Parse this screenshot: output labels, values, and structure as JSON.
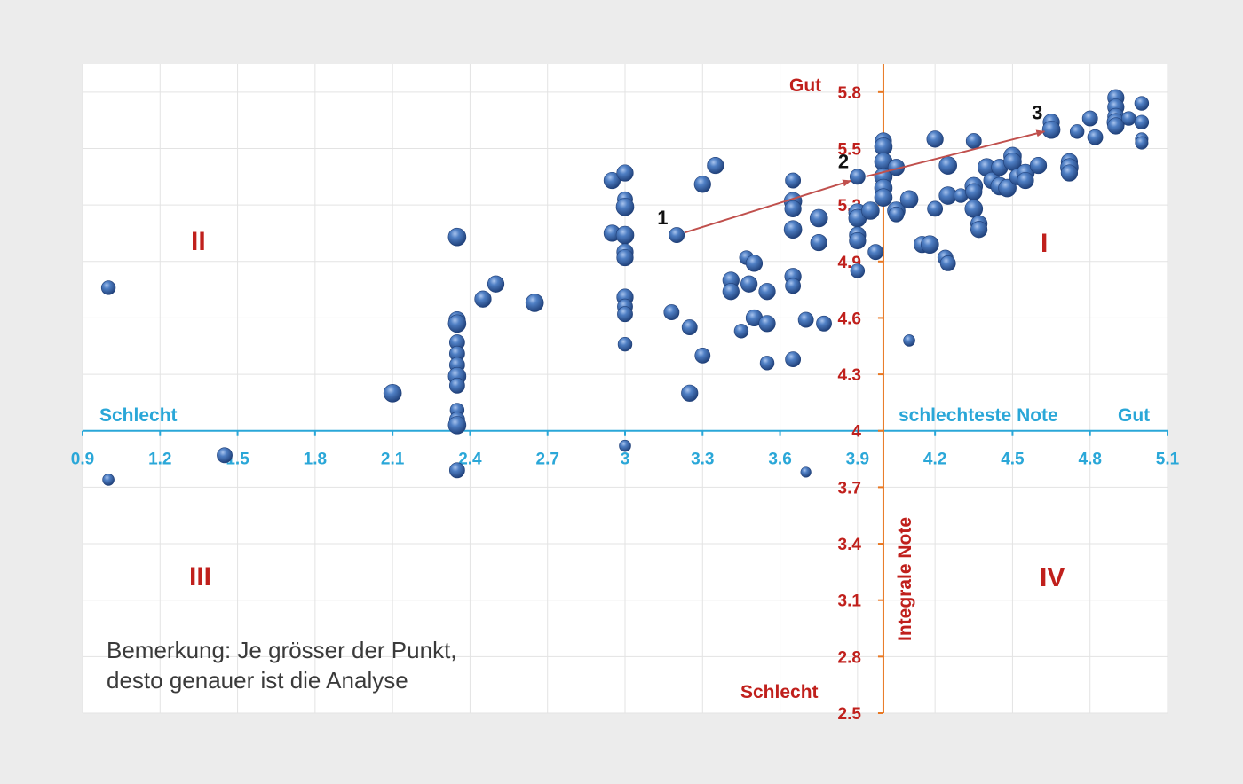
{
  "chart_data": {
    "type": "scatter",
    "x_axis": {
      "ticks": [
        "0.9",
        "1.2",
        "1.5",
        "1.8",
        "2.1",
        "2.4",
        "2.7",
        "3",
        "3.3",
        "3.6",
        "3.9",
        "4.2",
        "4.5",
        "4.8",
        "5.1"
      ],
      "range": [
        0.9,
        5.1
      ],
      "crosses_y_at": 4.0,
      "label_left": "Schlecht",
      "label_mid": "schlechteste Note",
      "label_right": "Gut",
      "color": "#2aa7d8"
    },
    "y_axis": {
      "ticks": [
        "2.5",
        "2.8",
        "3.1",
        "3.4",
        "3.7",
        "4",
        "4.3",
        "4.6",
        "4.9",
        "5.2",
        "5.5",
        "5.8"
      ],
      "range": [
        2.5,
        5.95
      ],
      "crosses_x_at": 4.0,
      "title": "Integrale Note",
      "label_top": "Gut",
      "label_bottom": "Schlecht",
      "tick_color": "#c0201c",
      "line_color": "#e87722"
    },
    "grid": true,
    "quadrant_labels": {
      "q1": "I",
      "q2": "II",
      "q3": "III",
      "q4": "IV"
    },
    "trend_points": [
      {
        "label": "1",
        "x": 3.2,
        "y": 5.04
      },
      {
        "label": "2",
        "x": 3.9,
        "y": 5.34
      },
      {
        "label": "3",
        "x": 4.65,
        "y": 5.6
      }
    ],
    "arrow_color": "#c0504d",
    "bubble_color": "#3f6fb5",
    "points": [
      {
        "x": 1.0,
        "y": 4.76,
        "s": 0.7
      },
      {
        "x": 1.0,
        "y": 3.74,
        "s": 0.5
      },
      {
        "x": 1.45,
        "y": 3.87,
        "s": 0.8
      },
      {
        "x": 2.1,
        "y": 4.2,
        "s": 1.0
      },
      {
        "x": 2.35,
        "y": 5.03,
        "s": 1.0
      },
      {
        "x": 2.35,
        "y": 4.59,
        "s": 0.9
      },
      {
        "x": 2.35,
        "y": 4.57,
        "s": 1.0
      },
      {
        "x": 2.35,
        "y": 4.47,
        "s": 0.8
      },
      {
        "x": 2.35,
        "y": 4.41,
        "s": 0.8
      },
      {
        "x": 2.35,
        "y": 4.35,
        "s": 0.8
      },
      {
        "x": 2.35,
        "y": 4.29,
        "s": 1.0
      },
      {
        "x": 2.35,
        "y": 4.24,
        "s": 0.8
      },
      {
        "x": 2.35,
        "y": 4.11,
        "s": 0.7
      },
      {
        "x": 2.35,
        "y": 4.06,
        "s": 0.8
      },
      {
        "x": 2.35,
        "y": 4.03,
        "s": 1.0
      },
      {
        "x": 2.35,
        "y": 3.79,
        "s": 0.8
      },
      {
        "x": 2.45,
        "y": 4.7,
        "s": 0.9
      },
      {
        "x": 2.5,
        "y": 4.78,
        "s": 0.9
      },
      {
        "x": 2.65,
        "y": 4.68,
        "s": 1.0
      },
      {
        "x": 2.95,
        "y": 5.33,
        "s": 0.9
      },
      {
        "x": 2.95,
        "y": 5.05,
        "s": 0.9
      },
      {
        "x": 3.0,
        "y": 5.37,
        "s": 0.9
      },
      {
        "x": 3.0,
        "y": 5.23,
        "s": 0.8
      },
      {
        "x": 3.0,
        "y": 5.19,
        "s": 1.0
      },
      {
        "x": 3.0,
        "y": 5.04,
        "s": 1.0
      },
      {
        "x": 3.0,
        "y": 4.95,
        "s": 0.9
      },
      {
        "x": 3.0,
        "y": 4.92,
        "s": 0.9
      },
      {
        "x": 3.0,
        "y": 4.71,
        "s": 0.9
      },
      {
        "x": 3.0,
        "y": 4.66,
        "s": 0.8
      },
      {
        "x": 3.0,
        "y": 4.62,
        "s": 0.8
      },
      {
        "x": 3.0,
        "y": 4.46,
        "s": 0.7
      },
      {
        "x": 3.0,
        "y": 3.92,
        "s": 0.5
      },
      {
        "x": 3.18,
        "y": 4.63,
        "s": 0.8
      },
      {
        "x": 3.2,
        "y": 5.04,
        "s": 0.8
      },
      {
        "x": 3.25,
        "y": 4.55,
        "s": 0.8
      },
      {
        "x": 3.25,
        "y": 4.2,
        "s": 0.9
      },
      {
        "x": 3.3,
        "y": 5.31,
        "s": 0.9
      },
      {
        "x": 3.3,
        "y": 4.4,
        "s": 0.8
      },
      {
        "x": 3.35,
        "y": 5.41,
        "s": 0.9
      },
      {
        "x": 3.41,
        "y": 4.8,
        "s": 0.9
      },
      {
        "x": 3.41,
        "y": 4.74,
        "s": 0.9
      },
      {
        "x": 3.45,
        "y": 4.53,
        "s": 0.7
      },
      {
        "x": 3.47,
        "y": 4.92,
        "s": 0.7
      },
      {
        "x": 3.48,
        "y": 4.78,
        "s": 0.9
      },
      {
        "x": 3.5,
        "y": 4.89,
        "s": 0.9
      },
      {
        "x": 3.5,
        "y": 4.6,
        "s": 0.9
      },
      {
        "x": 3.55,
        "y": 4.74,
        "s": 0.9
      },
      {
        "x": 3.55,
        "y": 4.57,
        "s": 0.9
      },
      {
        "x": 3.55,
        "y": 4.36,
        "s": 0.7
      },
      {
        "x": 3.65,
        "y": 5.33,
        "s": 0.8
      },
      {
        "x": 3.65,
        "y": 5.22,
        "s": 1.0
      },
      {
        "x": 3.65,
        "y": 5.18,
        "s": 0.9
      },
      {
        "x": 3.65,
        "y": 5.07,
        "s": 1.0
      },
      {
        "x": 3.65,
        "y": 4.82,
        "s": 0.9
      },
      {
        "x": 3.65,
        "y": 4.77,
        "s": 0.8
      },
      {
        "x": 3.65,
        "y": 4.38,
        "s": 0.8
      },
      {
        "x": 3.7,
        "y": 4.59,
        "s": 0.8
      },
      {
        "x": 3.7,
        "y": 3.78,
        "s": 0.4
      },
      {
        "x": 3.75,
        "y": 5.13,
        "s": 1.0
      },
      {
        "x": 3.75,
        "y": 5.0,
        "s": 0.9
      },
      {
        "x": 3.77,
        "y": 4.57,
        "s": 0.8
      },
      {
        "x": 3.9,
        "y": 5.35,
        "s": 0.8
      },
      {
        "x": 3.9,
        "y": 5.16,
        "s": 1.0
      },
      {
        "x": 3.9,
        "y": 5.13,
        "s": 1.0
      },
      {
        "x": 3.9,
        "y": 5.04,
        "s": 0.9
      },
      {
        "x": 3.9,
        "y": 5.01,
        "s": 0.9
      },
      {
        "x": 3.9,
        "y": 4.85,
        "s": 0.7
      },
      {
        "x": 3.97,
        "y": 4.95,
        "s": 0.8
      },
      {
        "x": 3.95,
        "y": 5.17,
        "s": 1.0
      },
      {
        "x": 4.0,
        "y": 5.54,
        "s": 0.9
      },
      {
        "x": 4.0,
        "y": 5.51,
        "s": 1.0
      },
      {
        "x": 4.0,
        "y": 5.43,
        "s": 1.0
      },
      {
        "x": 4.0,
        "y": 5.35,
        "s": 1.0
      },
      {
        "x": 4.0,
        "y": 5.29,
        "s": 1.0
      },
      {
        "x": 4.0,
        "y": 5.24,
        "s": 1.0
      },
      {
        "x": 4.05,
        "y": 5.4,
        "s": 0.9
      },
      {
        "x": 4.05,
        "y": 5.17,
        "s": 1.0
      },
      {
        "x": 4.05,
        "y": 5.15,
        "s": 0.8
      },
      {
        "x": 4.1,
        "y": 5.23,
        "s": 1.0
      },
      {
        "x": 4.1,
        "y": 4.48,
        "s": 0.5
      },
      {
        "x": 4.15,
        "y": 4.99,
        "s": 0.9
      },
      {
        "x": 4.18,
        "y": 4.99,
        "s": 1.0
      },
      {
        "x": 4.2,
        "y": 5.55,
        "s": 0.9
      },
      {
        "x": 4.2,
        "y": 5.18,
        "s": 0.8
      },
      {
        "x": 4.24,
        "y": 4.92,
        "s": 0.8
      },
      {
        "x": 4.25,
        "y": 4.89,
        "s": 0.8
      },
      {
        "x": 4.25,
        "y": 5.41,
        "s": 1.0
      },
      {
        "x": 4.25,
        "y": 5.25,
        "s": 1.0
      },
      {
        "x": 4.3,
        "y": 5.25,
        "s": 0.7
      },
      {
        "x": 4.35,
        "y": 5.54,
        "s": 0.8
      },
      {
        "x": 4.35,
        "y": 5.3,
        "s": 1.0
      },
      {
        "x": 4.35,
        "y": 5.27,
        "s": 0.9
      },
      {
        "x": 4.35,
        "y": 5.18,
        "s": 1.0
      },
      {
        "x": 4.37,
        "y": 5.1,
        "s": 0.9
      },
      {
        "x": 4.37,
        "y": 5.07,
        "s": 0.9
      },
      {
        "x": 4.4,
        "y": 5.4,
        "s": 1.0
      },
      {
        "x": 4.42,
        "y": 5.33,
        "s": 0.9
      },
      {
        "x": 4.45,
        "y": 5.3,
        "s": 1.0
      },
      {
        "x": 4.45,
        "y": 5.4,
        "s": 0.9
      },
      {
        "x": 4.48,
        "y": 5.29,
        "s": 1.0
      },
      {
        "x": 4.5,
        "y": 5.46,
        "s": 1.0
      },
      {
        "x": 4.5,
        "y": 5.43,
        "s": 1.0
      },
      {
        "x": 4.52,
        "y": 5.35,
        "s": 0.9
      },
      {
        "x": 4.55,
        "y": 5.37,
        "s": 1.0
      },
      {
        "x": 4.55,
        "y": 5.33,
        "s": 0.9
      },
      {
        "x": 4.6,
        "y": 5.41,
        "s": 0.9
      },
      {
        "x": 4.65,
        "y": 5.64,
        "s": 0.9
      },
      {
        "x": 4.65,
        "y": 5.6,
        "s": 1.0
      },
      {
        "x": 4.72,
        "y": 5.43,
        "s": 0.9
      },
      {
        "x": 4.72,
        "y": 5.4,
        "s": 1.0
      },
      {
        "x": 4.72,
        "y": 5.37,
        "s": 0.9
      },
      {
        "x": 4.75,
        "y": 5.59,
        "s": 0.7
      },
      {
        "x": 4.8,
        "y": 5.66,
        "s": 0.8
      },
      {
        "x": 4.82,
        "y": 5.56,
        "s": 0.8
      },
      {
        "x": 4.9,
        "y": 5.77,
        "s": 0.9
      },
      {
        "x": 4.9,
        "y": 5.72,
        "s": 0.9
      },
      {
        "x": 4.9,
        "y": 5.67,
        "s": 0.9
      },
      {
        "x": 4.9,
        "y": 5.64,
        "s": 1.0
      },
      {
        "x": 4.9,
        "y": 5.62,
        "s": 0.9
      },
      {
        "x": 4.95,
        "y": 5.66,
        "s": 0.7
      },
      {
        "x": 5.0,
        "y": 5.74,
        "s": 0.7
      },
      {
        "x": 5.0,
        "y": 5.64,
        "s": 0.7
      },
      {
        "x": 5.0,
        "y": 5.55,
        "s": 0.6
      },
      {
        "x": 5.0,
        "y": 5.53,
        "s": 0.6
      }
    ]
  },
  "note": {
    "line1": "Bemerkung: Je grösser der Punkt,",
    "line2": "desto genauer ist die Analyse"
  }
}
